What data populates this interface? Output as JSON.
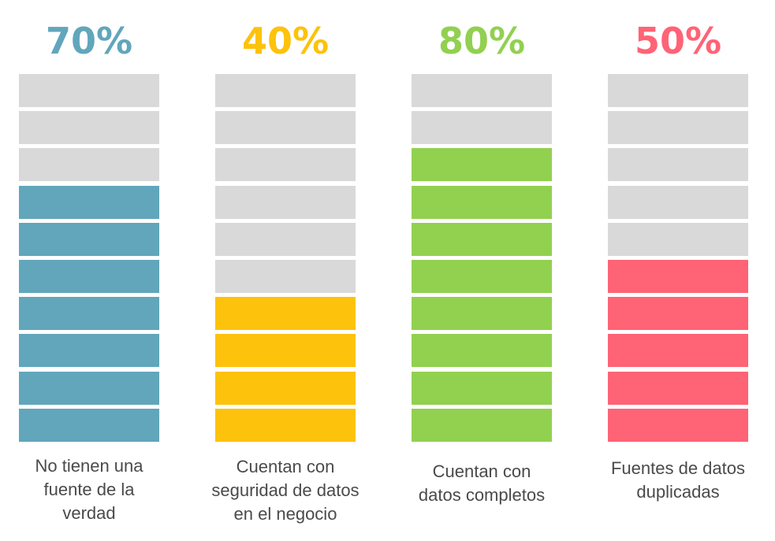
{
  "chart_data": {
    "type": "bar",
    "segments_per_bar": 10,
    "empty_color": "#d9d9d9",
    "items": [
      {
        "percent_label": "70%",
        "value": 70,
        "color": "#62a6bb",
        "caption": "No tienen una\nfuente de la\nverdad"
      },
      {
        "percent_label": "40%",
        "value": 40,
        "color": "#fdc20b",
        "caption": "Cuentan con\nseguridad de datos\nen el negocio"
      },
      {
        "percent_label": "80%",
        "value": 80,
        "color": "#92d050",
        "caption": "Cuentan con\ndatos completos"
      },
      {
        "percent_label": "50%",
        "value": 50,
        "color": "#ff6376",
        "caption": "Fuentes de datos\nduplicadas"
      }
    ]
  }
}
